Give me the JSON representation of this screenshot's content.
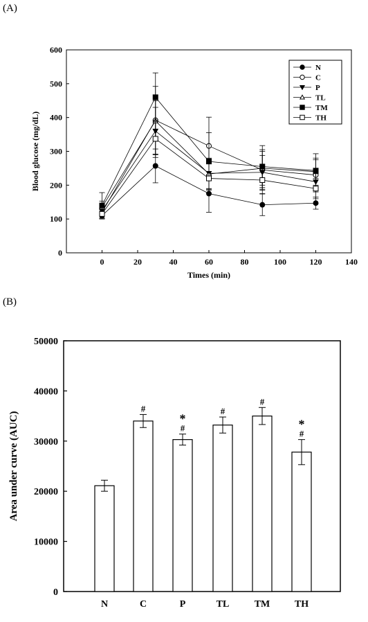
{
  "panels": {
    "a_label": "(A)",
    "b_label": "(B)"
  },
  "chart_data": [
    {
      "type": "line",
      "xlabel": "Times (min)",
      "ylabel": "Blood glucose (mg/dL)",
      "xlim": [
        -20,
        140
      ],
      "ylim": [
        0,
        600
      ],
      "x_ticks": [
        "0",
        "20",
        "40",
        "60",
        "80",
        "100",
        "120",
        "140"
      ],
      "y_ticks": [
        "0",
        "100",
        "200",
        "300",
        "400",
        "500",
        "600"
      ],
      "x": [
        0,
        30,
        60,
        90,
        120
      ],
      "legend_position": "top-right",
      "series": [
        {
          "name": "N",
          "marker": "filled-circle",
          "values": [
            110,
            257,
            175,
            142,
            147
          ],
          "errors": [
            10,
            50,
            55,
            32,
            18
          ]
        },
        {
          "name": "C",
          "marker": "open-circle",
          "values": [
            120,
            392,
            316,
            245,
            230
          ],
          "errors": [
            12,
            100,
            85,
            60,
            45
          ]
        },
        {
          "name": "P",
          "marker": "filled-triangle",
          "values": [
            125,
            360,
            235,
            238,
            210
          ],
          "errors": [
            12,
            70,
            45,
            50,
            30
          ]
        },
        {
          "name": "TL",
          "marker": "open-triangle",
          "values": [
            135,
            390,
            233,
            250,
            240
          ],
          "errors": [
            18,
            60,
            45,
            50,
            40
          ]
        },
        {
          "name": "TM",
          "marker": "filled-square",
          "values": [
            140,
            460,
            270,
            255,
            243
          ],
          "errors": [
            38,
            72,
            85,
            62,
            50
          ]
        },
        {
          "name": "TH",
          "marker": "open-square",
          "values": [
            115,
            337,
            220,
            215,
            190
          ],
          "errors": [
            12,
            55,
            45,
            40,
            30
          ]
        }
      ]
    },
    {
      "type": "bar",
      "ylabel": "Area under curve (AUC)",
      "ylim": [
        0,
        50000
      ],
      "y_ticks": [
        "0",
        "10000",
        "20000",
        "30000",
        "40000",
        "50000"
      ],
      "categories": [
        "N",
        "C",
        "P",
        "TL",
        "TM",
        "TH"
      ],
      "values": [
        21100,
        34000,
        30300,
        33200,
        35000,
        27800
      ],
      "errors": [
        1100,
        1300,
        1100,
        1600,
        1700,
        2500
      ],
      "annotations": [
        "",
        "#",
        "#*",
        "#",
        "#",
        "#*"
      ]
    }
  ]
}
